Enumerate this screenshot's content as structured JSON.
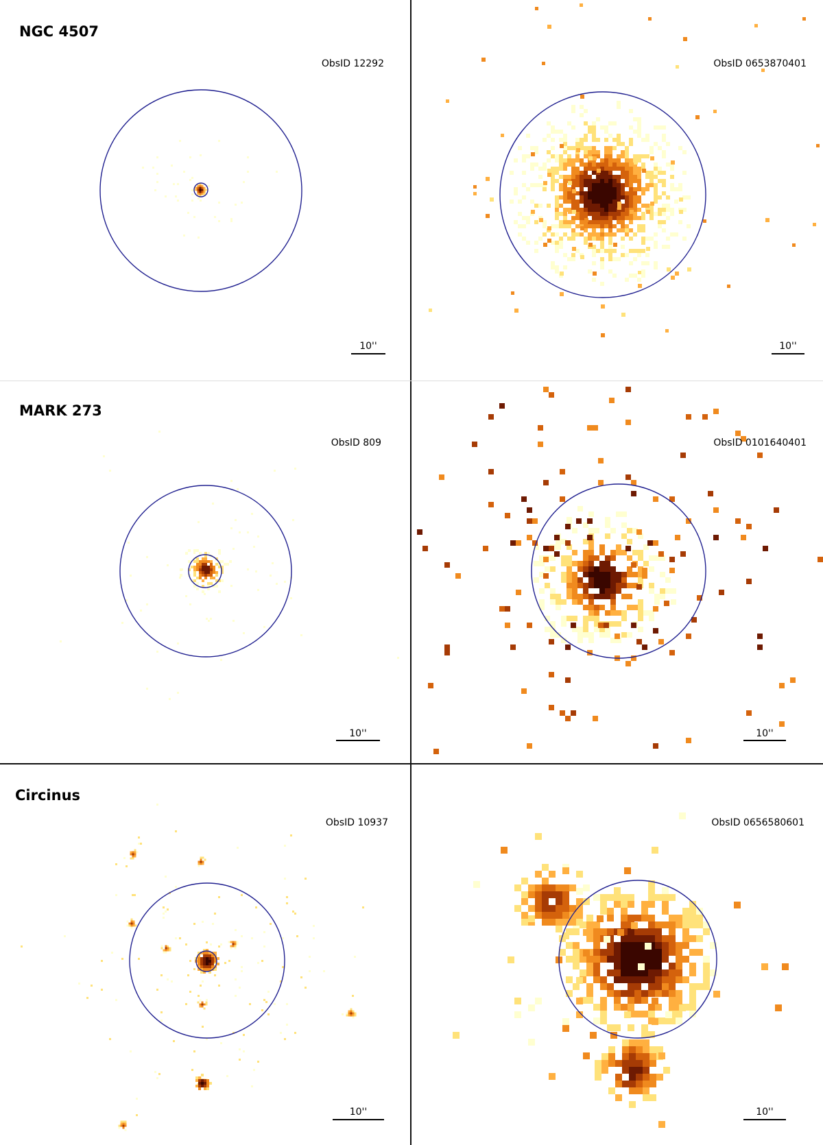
{
  "colors": {
    "aperture": "#1f1f8f",
    "divider": "#111111",
    "colormap": [
      "#ffffd0",
      "#ffe27a",
      "#ffb040",
      "#f08a1e",
      "#d4620c",
      "#a63b05",
      "#6e1a02",
      "#3a0600"
    ]
  },
  "rows": [
    {
      "target": "NGC 4507",
      "chandra": {
        "obsid": "ObsID 12292",
        "scale_label": "10''"
      },
      "xmm": {
        "obsid": "ObsID 0653870401",
        "scale_label": "10''"
      }
    },
    {
      "target": "MARK 273",
      "chandra": {
        "obsid": "ObsID 809",
        "scale_label": "10''"
      },
      "xmm": {
        "obsid": "ObsID 0101640401",
        "scale_label": "10''"
      }
    },
    {
      "target": "Circinus",
      "chandra": {
        "obsid": "ObsID 10937",
        "scale_label": "10''"
      },
      "xmm": {
        "obsid": "ObsID 0656580601",
        "scale_label": "10''"
      }
    }
  ]
}
